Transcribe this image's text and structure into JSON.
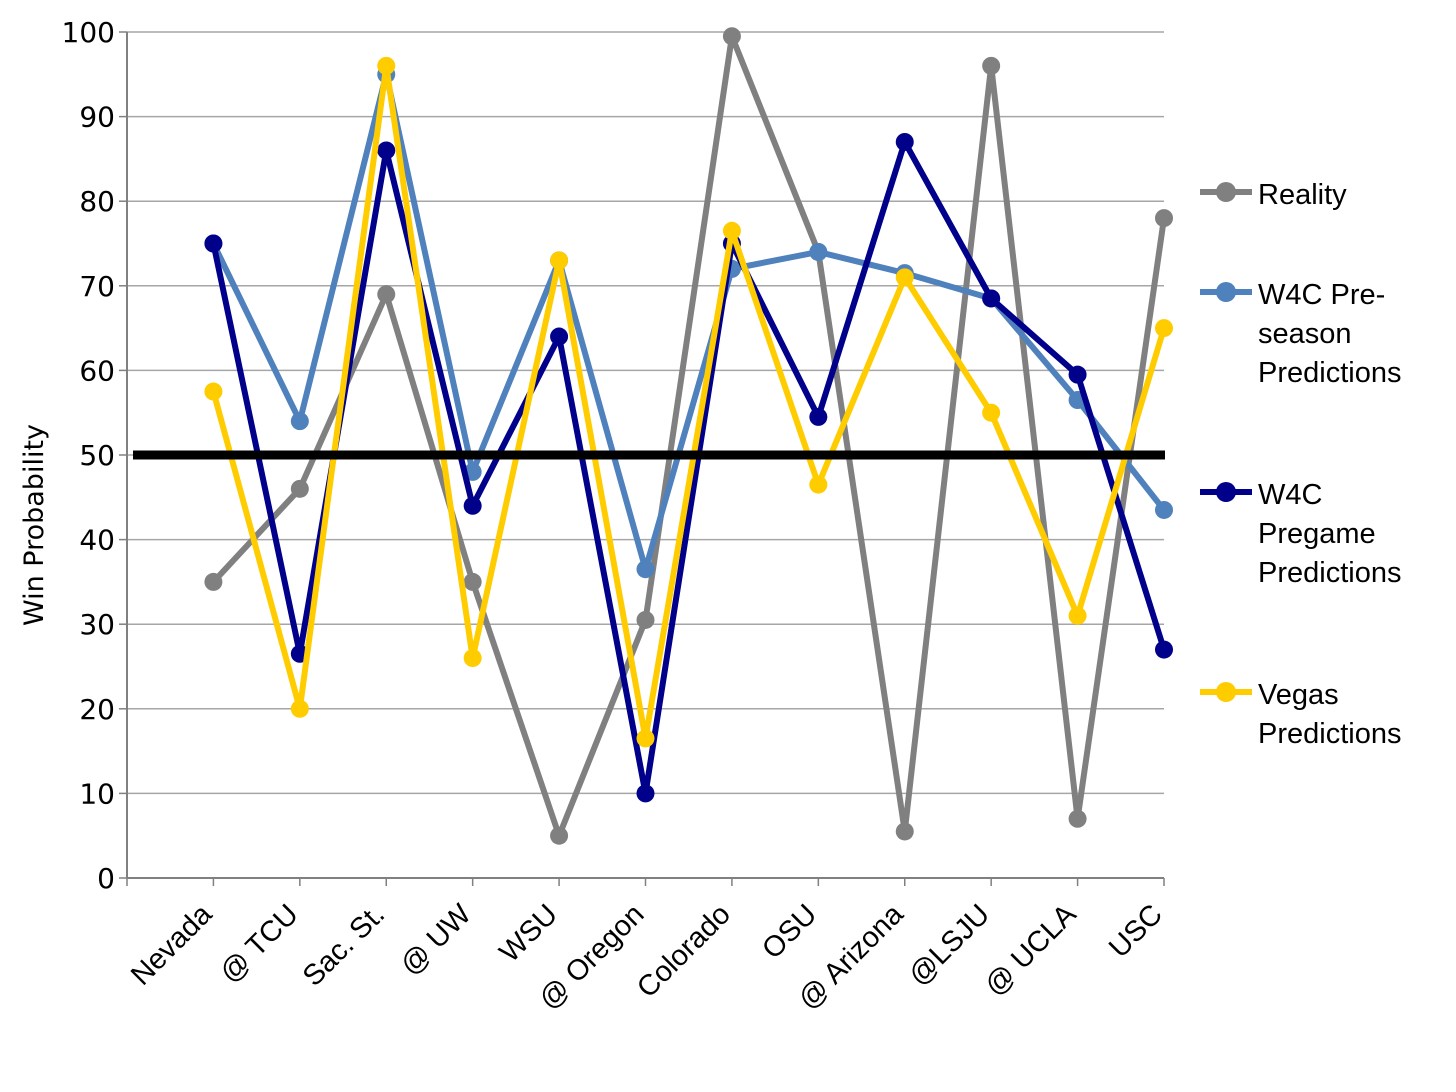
{
  "chart_data": {
    "type": "line",
    "title": "",
    "xlabel": "",
    "ylabel": "Win Probability",
    "ylim": [
      0,
      100
    ],
    "yticks": [
      "0",
      "10",
      "20",
      "30",
      "40",
      "50",
      "60",
      "70",
      "80",
      "90",
      "100"
    ],
    "grid": true,
    "legend_position": "right",
    "reference_line": {
      "y": 50,
      "color": "#000000"
    },
    "categories": [
      "Nevada",
      "@ TCU",
      "Sac. St.",
      "@ UW",
      "WSU",
      "@ Oregon",
      "Colorado",
      "OSU",
      "@ Arizona",
      "@LSJU",
      "@ UCLA",
      "USC"
    ],
    "series": [
      {
        "name": "Reality",
        "color": "#808080",
        "values": [
          35,
          46,
          69,
          35,
          5,
          30.5,
          99.5,
          74,
          5.5,
          96,
          7,
          78
        ]
      },
      {
        "name": "W4C Pre-\nseason\nPredictions",
        "color": "#4f81bd",
        "values": [
          75,
          54,
          95,
          48,
          73,
          36.5,
          72,
          74,
          71.5,
          68.5,
          56.5,
          43.5
        ]
      },
      {
        "name": "W4C\nPregame\nPredictions",
        "color": "#00008b",
        "values": [
          75,
          26.5,
          86,
          44,
          64,
          10,
          75,
          54.5,
          87,
          68.5,
          59.5,
          27
        ]
      },
      {
        "name": "Vegas\nPredictions",
        "color": "#ffcc00",
        "values": [
          57.5,
          20,
          96,
          26,
          73,
          16.5,
          76.5,
          46.5,
          71,
          55,
          31,
          65
        ]
      }
    ]
  }
}
